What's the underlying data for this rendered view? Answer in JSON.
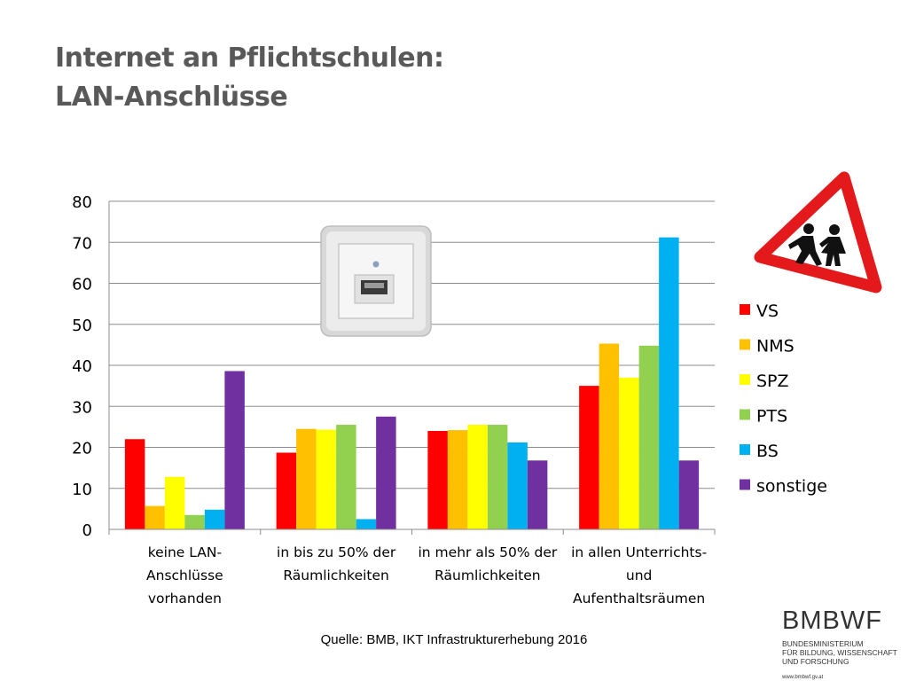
{
  "title_line1": "Internet an Pflichtschulen:",
  "title_line2": "LAN-Anschlüsse",
  "source": "Quelle: BMB, IKT Infrastrukturerhebung 2016",
  "brand": {
    "name": "BMBWF",
    "sub1": "BUNDESMINISTERIUM",
    "sub2": "FÜR BILDUNG, WISSENSCHAFT",
    "sub3": "UND FORSCHUNG",
    "url": "www.bmbwf.gv.at"
  },
  "images": {
    "socket": "lan-socket-photo",
    "sign": "children-crossing-warning-sign"
  },
  "chart_data": {
    "type": "bar",
    "title": "",
    "xlabel": "",
    "ylabel": "",
    "ylim": [
      0,
      80
    ],
    "yticks": [
      0,
      10,
      20,
      30,
      40,
      50,
      60,
      70,
      80
    ],
    "grid": true,
    "legend_position": "right",
    "categories": [
      [
        "keine LAN-",
        "Anschlüsse",
        "vorhanden"
      ],
      [
        "in bis zu 50% der",
        "Räumlichkeiten"
      ],
      [
        "in mehr als 50% der",
        "Räumlichkeiten"
      ],
      [
        "in allen Unterrichts-",
        "und",
        "Aufenthaltsräumen"
      ]
    ],
    "series": [
      {
        "name": "VS",
        "color": "#ff0000",
        "values": [
          22,
          18.7,
          24,
          35
        ]
      },
      {
        "name": "NMS",
        "color": "#ffc000",
        "values": [
          5.7,
          24.5,
          24.2,
          45.3
        ]
      },
      {
        "name": "SPZ",
        "color": "#ffff00",
        "values": [
          12.8,
          24.3,
          25.5,
          37
        ]
      },
      {
        "name": "PTS",
        "color": "#92d050",
        "values": [
          3.5,
          25.5,
          25.5,
          44.8
        ]
      },
      {
        "name": "BS",
        "color": "#00b0f0",
        "values": [
          4.8,
          2.5,
          21.2,
          71.2
        ]
      },
      {
        "name": "sonstige",
        "color": "#7030a0",
        "values": [
          38.6,
          27.5,
          16.8,
          16.8
        ]
      }
    ]
  }
}
